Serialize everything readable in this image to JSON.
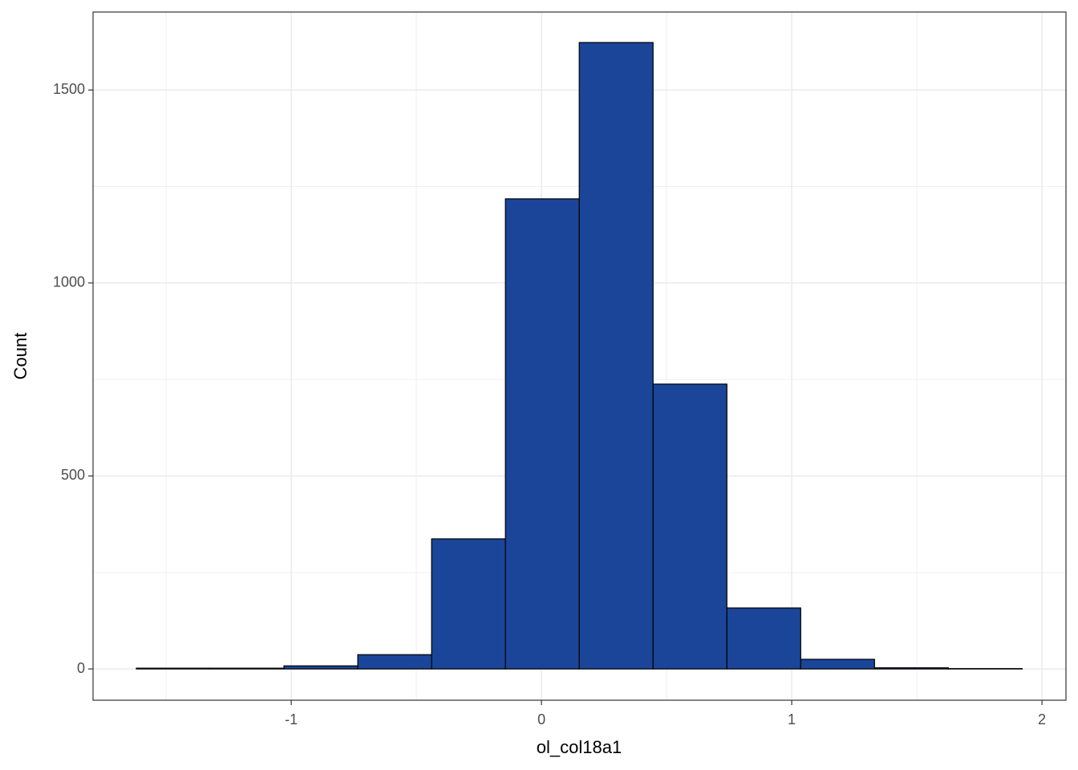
{
  "chart_data": {
    "type": "histogram",
    "x_label": "ol_col18a1",
    "y_label": "Count",
    "bins": [
      -1.619,
      -1.324,
      -1.029,
      -0.734,
      -0.439,
      -0.144,
      0.151,
      0.446,
      0.741,
      1.036,
      1.331,
      1.626,
      1.921
    ],
    "counts": [
      2,
      2,
      8,
      37,
      337,
      1218,
      1623,
      738,
      158,
      25,
      3,
      1
    ],
    "color": "#1a4599",
    "xlim": [
      -1.792,
      2.096
    ],
    "ylim": [
      -81,
      1702
    ],
    "xticks": [
      -1,
      0,
      1,
      2
    ],
    "yticks": [
      0,
      500,
      1000,
      1500
    ],
    "grid": true
  }
}
